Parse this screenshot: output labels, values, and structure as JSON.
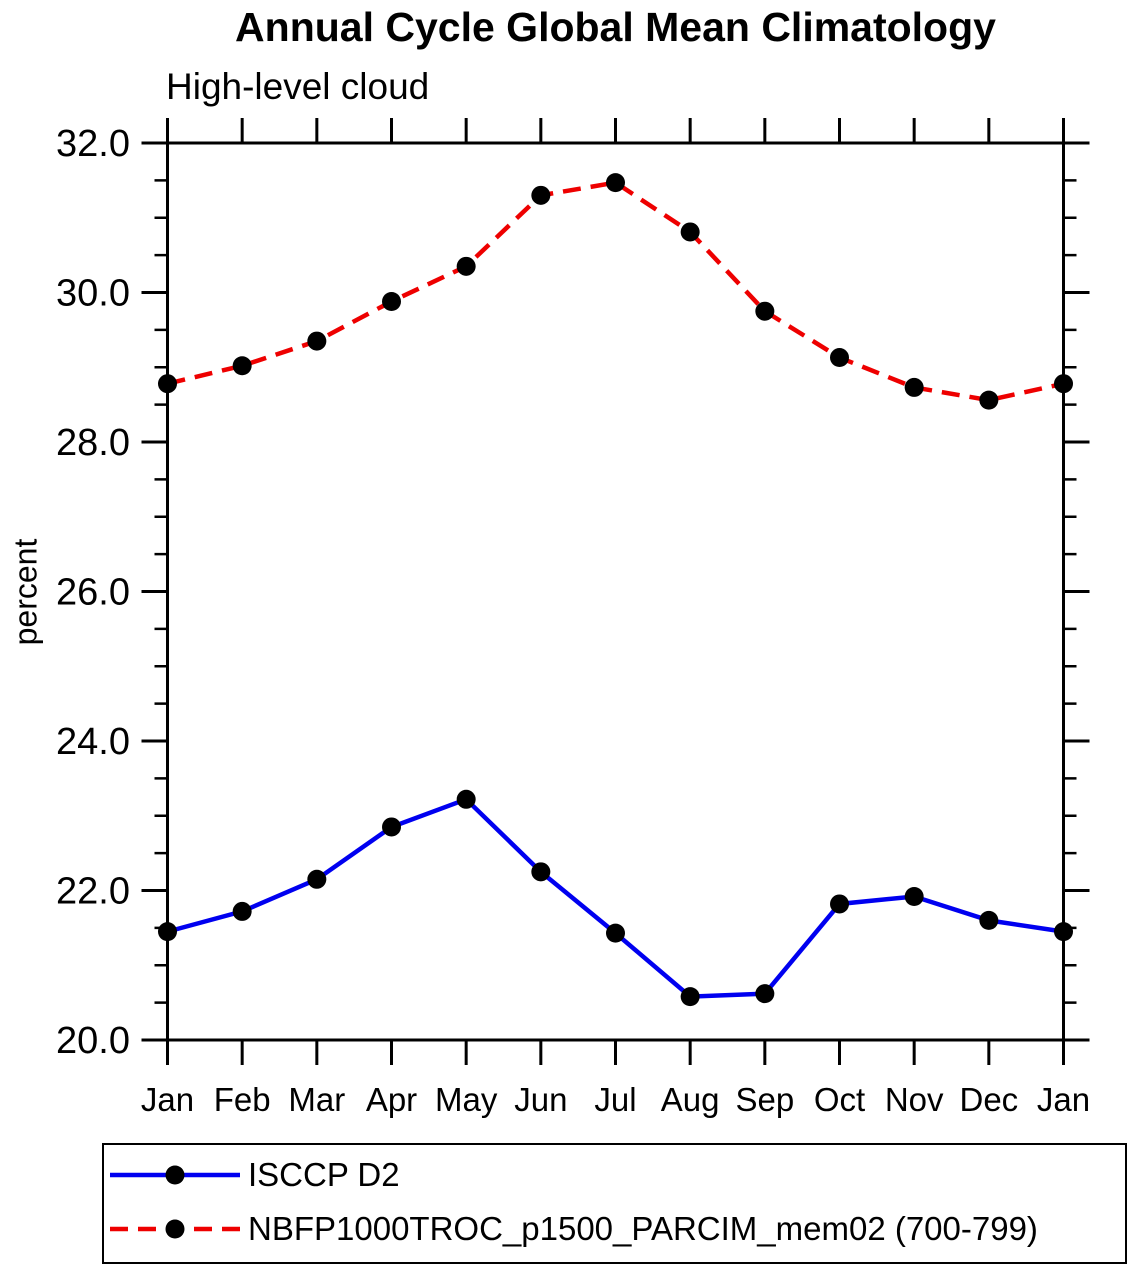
{
  "chart_data": {
    "type": "line",
    "title": "Annual Cycle Global Mean Climatology",
    "subtitle": "High-level cloud",
    "ylabel": "percent",
    "xlabel": "",
    "categories": [
      "Jan",
      "Feb",
      "Mar",
      "Apr",
      "May",
      "Jun",
      "Jul",
      "Aug",
      "Sep",
      "Oct",
      "Nov",
      "Dec",
      "Jan"
    ],
    "y_ticks": [
      "20.0",
      "22.0",
      "24.0",
      "26.0",
      "28.0",
      "30.0",
      "32.0"
    ],
    "ylim": [
      20.0,
      32.0
    ],
    "minor_tick_step": 0.5,
    "grid": false,
    "legend_position": "bottom",
    "axis_color": "#000000",
    "series": [
      {
        "name": "ISCCP D2",
        "color": "#0000f0",
        "line_style": "solid",
        "marker": "circle",
        "marker_color": "#000000",
        "values": [
          21.45,
          21.72,
          22.15,
          22.85,
          23.22,
          22.25,
          21.43,
          20.58,
          20.62,
          21.82,
          21.92,
          21.6,
          21.45
        ]
      },
      {
        "name": "NBFP1000TROC_p1500_PARCIM_mem02 (700-799)",
        "color": "#ee0000",
        "line_style": "dashed",
        "marker": "circle",
        "marker_color": "#000000",
        "values": [
          28.78,
          29.02,
          29.35,
          29.88,
          30.35,
          31.3,
          31.47,
          30.81,
          29.75,
          29.13,
          28.73,
          28.56,
          28.78
        ]
      }
    ]
  }
}
